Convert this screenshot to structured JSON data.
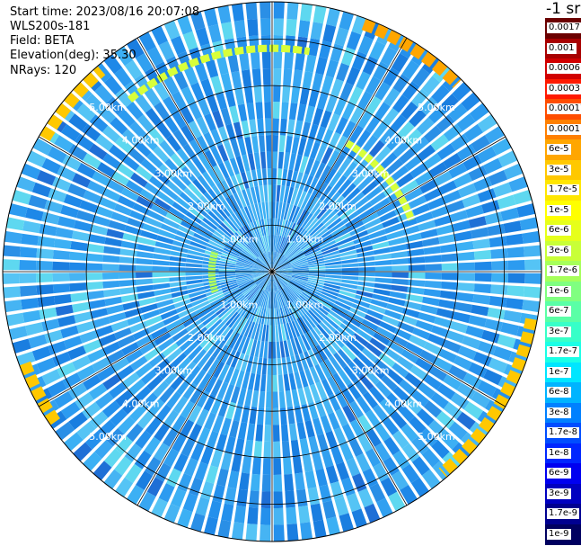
{
  "header": {
    "start_time_label": "Start time:",
    "start_time_value": "2023/08/16 20:07:08",
    "instrument": "WLS200s-181",
    "field_label": "Field:",
    "field_value": "BETA",
    "elevation_label": "Elevation(deg):",
    "elevation_value": "35.30",
    "nrays_label": "NRays:",
    "nrays_value": "120"
  },
  "colorbar": {
    "unit": "-1 sr",
    "labels": [
      "0.0017",
      "0.001",
      "0.0006",
      "0.0003",
      "0.00017",
      "0.0001",
      "6e-5",
      "3e-5",
      "1.7e-5",
      "1e-5",
      "6e-6",
      "3e-6",
      "1.7e-6",
      "1e-6",
      "6e-7",
      "3e-7",
      "1.7e-7",
      "1e-7",
      "6e-8",
      "3e-8",
      "1.7e-8",
      "1e-8",
      "6e-9",
      "3e-9",
      "1.7e-9",
      "1e-9"
    ],
    "colors": [
      "#6b0000",
      "#a80000",
      "#d10000",
      "#ff1a00",
      "#ff4d00",
      "#ff8000",
      "#ffa600",
      "#ffc800",
      "#ffe600",
      "#ffff00",
      "#e6ff1a",
      "#c8ff37",
      "#a6ff5a",
      "#80ff80",
      "#5affa6",
      "#37ffc8",
      "#1affe6",
      "#00e6ff",
      "#00b4ff",
      "#0080ff",
      "#004dff",
      "#0026ff",
      "#0000f0",
      "#0000c0",
      "#000090",
      "#000060"
    ]
  },
  "chart_data": {
    "type": "ppi",
    "field": "BETA",
    "elevation_deg": 35.3,
    "n_rays": 120,
    "range_rings_km": [
      1,
      2,
      3,
      4,
      5
    ],
    "ring_labels": [
      "1.00km",
      "2.00km",
      "3.00km",
      "4.00km",
      "5.00km"
    ],
    "max_range_km": 5.8,
    "spoke_step_deg": 30,
    "color_scale": "log10 backscatter, 1e-9 to 0.0017 m-1 sr-1",
    "background_level_approx": "1e-7 to 1e-6",
    "features": [
      {
        "description": "enhanced ring segment",
        "range_km": 4.8,
        "azimuth_start_deg": -40,
        "azimuth_end_deg": 10,
        "level_approx": "1e-5"
      },
      {
        "description": "enhanced ring segment",
        "range_km": 3.2,
        "azimuth_start_deg": 30,
        "azimuth_end_deg": 70,
        "level_approx": "1e-5"
      },
      {
        "description": "enhanced ring segment",
        "range_km": 1.3,
        "azimuth_start_deg": 250,
        "azimuth_end_deg": 290,
        "level_approx": "3e-6"
      },
      {
        "description": "edge band",
        "range_km": 5.7,
        "azimuth_start_deg": 20,
        "azimuth_end_deg": 45,
        "level_approx": "6e-5"
      },
      {
        "description": "edge band",
        "range_km": 5.7,
        "azimuth_start_deg": 100,
        "azimuth_end_deg": 140,
        "level_approx": "3e-5"
      },
      {
        "description": "edge band",
        "range_km": 5.7,
        "azimuth_start_deg": 235,
        "azimuth_end_deg": 250,
        "level_approx": "3e-5"
      },
      {
        "description": "edge band",
        "range_km": 5.7,
        "azimuth_start_deg": 300,
        "azimuth_end_deg": 320,
        "level_approx": "3e-5"
      }
    ]
  }
}
